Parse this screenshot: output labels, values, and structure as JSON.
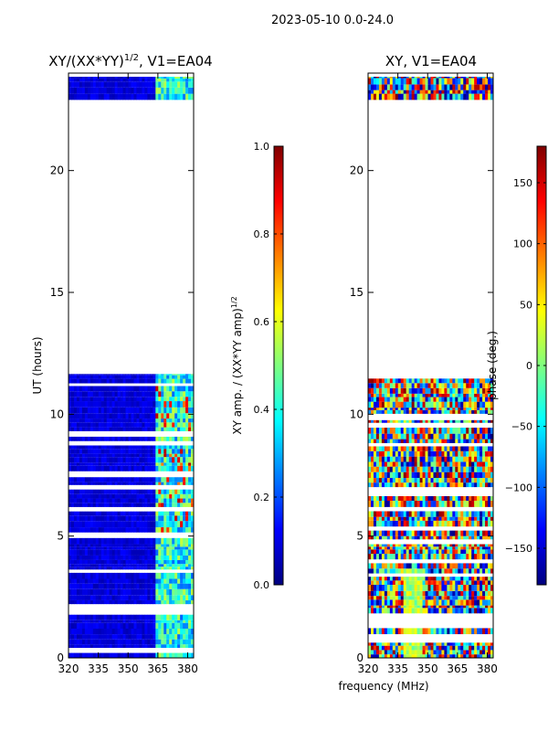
{
  "figure": {
    "suptitle": "2023-05-10 0.0-24.0",
    "xlabel": "frequency (MHz)"
  },
  "chart_data": [
    {
      "type": "heatmap",
      "title": "XY/(XX*YY)^1/2, V1=EA04",
      "title_base": "XY/(XX*YY)",
      "title_exp": "1/2",
      "title_tail": ", V1=EA04",
      "ylabel": "UT (hours)",
      "xlim": [
        320,
        383
      ],
      "ylim": [
        0,
        24
      ],
      "xticks": [
        320,
        335,
        350,
        365,
        380
      ],
      "yticks": [
        0,
        5,
        10,
        15,
        20
      ],
      "data_ranges_hours": [
        [
          0,
          11.65
        ],
        [
          22.9,
          23.85
        ]
      ],
      "colorbar": {
        "label": "XY amp. / (XX*YY amp)^1/2",
        "label_base": "XY amp. / (XX*YY amp)",
        "label_exp": "1/2",
        "range": [
          0.0,
          1.0
        ],
        "ticks": [
          "0.0",
          "0.2",
          "0.4",
          "0.6",
          "0.8",
          "1.0"
        ],
        "colormap": "jet"
      }
    },
    {
      "type": "heatmap",
      "title": "XY, V1=EA04",
      "xlim": [
        320,
        383
      ],
      "ylim": [
        0,
        24
      ],
      "xticks": [
        320,
        335,
        350,
        365,
        380
      ],
      "yticks": [
        0,
        5,
        10,
        15,
        20
      ],
      "data_ranges_hours": [
        [
          0,
          11.65
        ],
        [
          22.9,
          23.85
        ]
      ],
      "colorbar": {
        "label": "phase (deg.)",
        "range": [
          -180,
          180
        ],
        "ticks": [
          "−150",
          "−100",
          "−50",
          "0",
          "50",
          "100",
          "150"
        ],
        "tick_values": [
          -150,
          -100,
          -50,
          0,
          50,
          100,
          150
        ],
        "colormap": "jet"
      }
    }
  ],
  "jet_stops": [
    "#00007f",
    "#0000ff",
    "#007fff",
    "#00ffff",
    "#7fff7f",
    "#ffff00",
    "#ff7f00",
    "#ff0000",
    "#7f0000"
  ]
}
